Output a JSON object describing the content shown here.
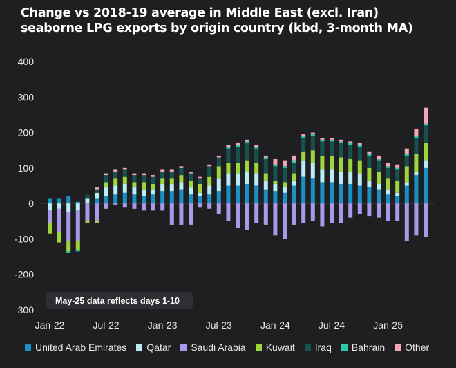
{
  "title_line1": "Change vs 2018-19 average in Middle East (excl. Iran)",
  "title_line2": "seaborne LPG exports by origin country (kbd, 3-month MA)",
  "note": "May-25 data reflects days 1-10",
  "chart_data": {
    "type": "bar",
    "stacked": true,
    "title": "Change vs 2018-19 average in Middle East (excl. Iran) seaborne LPG exports by origin country (kbd, 3-month MA)",
    "ylim": [
      -300,
      400
    ],
    "yticks": [
      400,
      300,
      200,
      100,
      0,
      -100,
      -200,
      -300
    ],
    "xtick_labels": [
      {
        "label": "Jan-22",
        "index": 0
      },
      {
        "label": "Jul-22",
        "index": 6
      },
      {
        "label": "Jan-23",
        "index": 12
      },
      {
        "label": "Jul-23",
        "index": 18
      },
      {
        "label": "Jan-24",
        "index": 24
      },
      {
        "label": "Jul-24",
        "index": 30
      },
      {
        "label": "Jan-25",
        "index": 36
      }
    ],
    "categories": [
      "Jan-22",
      "Feb-22",
      "Mar-22",
      "Apr-22",
      "May-22",
      "Jun-22",
      "Jul-22",
      "Aug-22",
      "Sep-22",
      "Oct-22",
      "Nov-22",
      "Dec-22",
      "Jan-23",
      "Feb-23",
      "Mar-23",
      "Apr-23",
      "May-23",
      "Jun-23",
      "Jul-23",
      "Aug-23",
      "Sep-23",
      "Oct-23",
      "Nov-23",
      "Dec-23",
      "Jan-24",
      "Feb-24",
      "Mar-24",
      "Apr-24",
      "May-24",
      "Jun-24",
      "Jul-24",
      "Aug-24",
      "Sep-24",
      "Oct-24",
      "Nov-24",
      "Dec-24",
      "Jan-25",
      "Feb-25",
      "Mar-25",
      "Apr-25",
      "May-25"
    ],
    "legend_position": "bottom",
    "series": [
      {
        "name": "United Arab Emirates",
        "color": "#1a8fc4",
        "values": [
          15,
          15,
          20,
          5,
          0,
          15,
          20,
          25,
          30,
          25,
          20,
          25,
          35,
          35,
          40,
          25,
          20,
          25,
          35,
          50,
          50,
          55,
          50,
          40,
          35,
          30,
          50,
          75,
          70,
          60,
          60,
          55,
          55,
          50,
          45,
          40,
          25,
          20,
          50,
          80,
          100
        ]
      },
      {
        "name": "Qatar",
        "color": "#b8ecf6",
        "values": [
          -20,
          -15,
          -25,
          -20,
          15,
          15,
          25,
          25,
          25,
          20,
          20,
          15,
          20,
          20,
          20,
          20,
          10,
          25,
          35,
          35,
          35,
          35,
          35,
          25,
          20,
          15,
          15,
          45,
          45,
          35,
          35,
          35,
          35,
          35,
          20,
          15,
          15,
          10,
          10,
          10,
          20
        ]
      },
      {
        "name": "Saudi Arabia",
        "color": "#a89ae8",
        "values": [
          -35,
          -65,
          -80,
          -85,
          -50,
          -50,
          -15,
          -5,
          -10,
          -15,
          -20,
          -20,
          -20,
          -60,
          -60,
          -60,
          -10,
          -15,
          -30,
          -50,
          -70,
          -75,
          -55,
          -60,
          -90,
          -100,
          -60,
          -55,
          -50,
          -65,
          -55,
          -55,
          -40,
          -30,
          -35,
          -40,
          -50,
          -50,
          -105,
          -90,
          -95
        ]
      },
      {
        "name": "Kuwait",
        "color": "#9ed43c",
        "values": [
          -30,
          -30,
          -30,
          -25,
          -5,
          -5,
          15,
          20,
          20,
          15,
          20,
          15,
          15,
          15,
          20,
          20,
          25,
          25,
          35,
          30,
          30,
          30,
          30,
          20,
          10,
          15,
          20,
          25,
          35,
          40,
          40,
          40,
          35,
          35,
          35,
          35,
          30,
          35,
          45,
          50,
          50
        ]
      },
      {
        "name": "Iraq",
        "color": "#15524f",
        "values": [
          0,
          0,
          0,
          0,
          10,
          10,
          20,
          20,
          20,
          20,
          20,
          20,
          20,
          20,
          20,
          20,
          15,
          30,
          25,
          40,
          45,
          50,
          40,
          40,
          40,
          40,
          30,
          40,
          40,
          40,
          40,
          40,
          40,
          40,
          35,
          30,
          30,
          30,
          30,
          45,
          50
        ]
      },
      {
        "name": "Bahrain",
        "color": "#2ec8b0",
        "values": [
          0,
          0,
          -5,
          -5,
          0,
          0,
          0,
          0,
          0,
          0,
          0,
          0,
          0,
          0,
          0,
          0,
          0,
          0,
          0,
          5,
          5,
          5,
          5,
          5,
          5,
          5,
          5,
          5,
          5,
          5,
          5,
          5,
          5,
          5,
          5,
          5,
          5,
          5,
          5,
          5,
          5
        ]
      },
      {
        "name": "Other",
        "color": "#f4a6b6",
        "values": [
          0,
          0,
          0,
          0,
          0,
          5,
          5,
          5,
          5,
          5,
          5,
          5,
          5,
          5,
          5,
          5,
          5,
          5,
          5,
          5,
          5,
          5,
          5,
          5,
          15,
          15,
          15,
          5,
          5,
          5,
          5,
          5,
          5,
          5,
          5,
          10,
          10,
          10,
          15,
          20,
          45
        ]
      }
    ]
  }
}
